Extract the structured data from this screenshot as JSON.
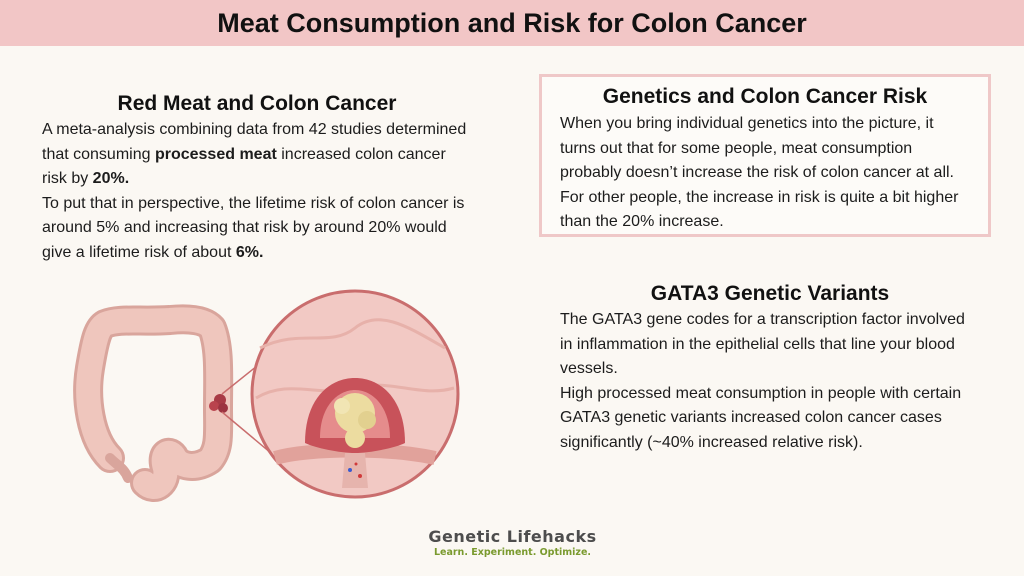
{
  "header": {
    "title": "Meat Consumption and Risk for Colon Cancer"
  },
  "left_section": {
    "title": "Red Meat and Colon Cancer",
    "p1_a": "A meta-analysis combining data from 42 studies determined that consuming ",
    "p1_bold1": "processed meat",
    "p1_b": " increased colon cancer risk by ",
    "p1_bold2": "20%.",
    "p2_a": "To put that in perspective, the lifetime risk of colon cancer is around 5% and increasing that risk by around 20% would give a lifetime risk of about ",
    "p2_bold": "6%."
  },
  "genetics_box": {
    "title": "Genetics and Colon Cancer Risk",
    "text": "When you bring individual genetics into the picture, it turns out that for some people, meat consumption probably doesn’t increase the risk of colon cancer at all. For other people, the increase in risk is quite a bit higher than the 20% increase."
  },
  "gata3_section": {
    "title": "GATA3 Genetic Variants",
    "p1": "The GATA3 gene codes for a transcription factor involved in inflammation in the epithelial cells that line your blood vessels.",
    "p2": "High processed meat consumption in people with certain GATA3 genetic variants increased colon cancer cases significantly (~40% increased relative risk)."
  },
  "logo": {
    "brand": "Genetic Lifehacks",
    "tagline": "Learn. Experiment. Optimize."
  },
  "colors": {
    "header_bg": "#f2c6c6",
    "box_border": "#efc8c8",
    "colon": "#ecc0b8",
    "tumor": "#c8525a",
    "tumor_core": "#ecdca0",
    "tagline": "#7a9a2e"
  }
}
